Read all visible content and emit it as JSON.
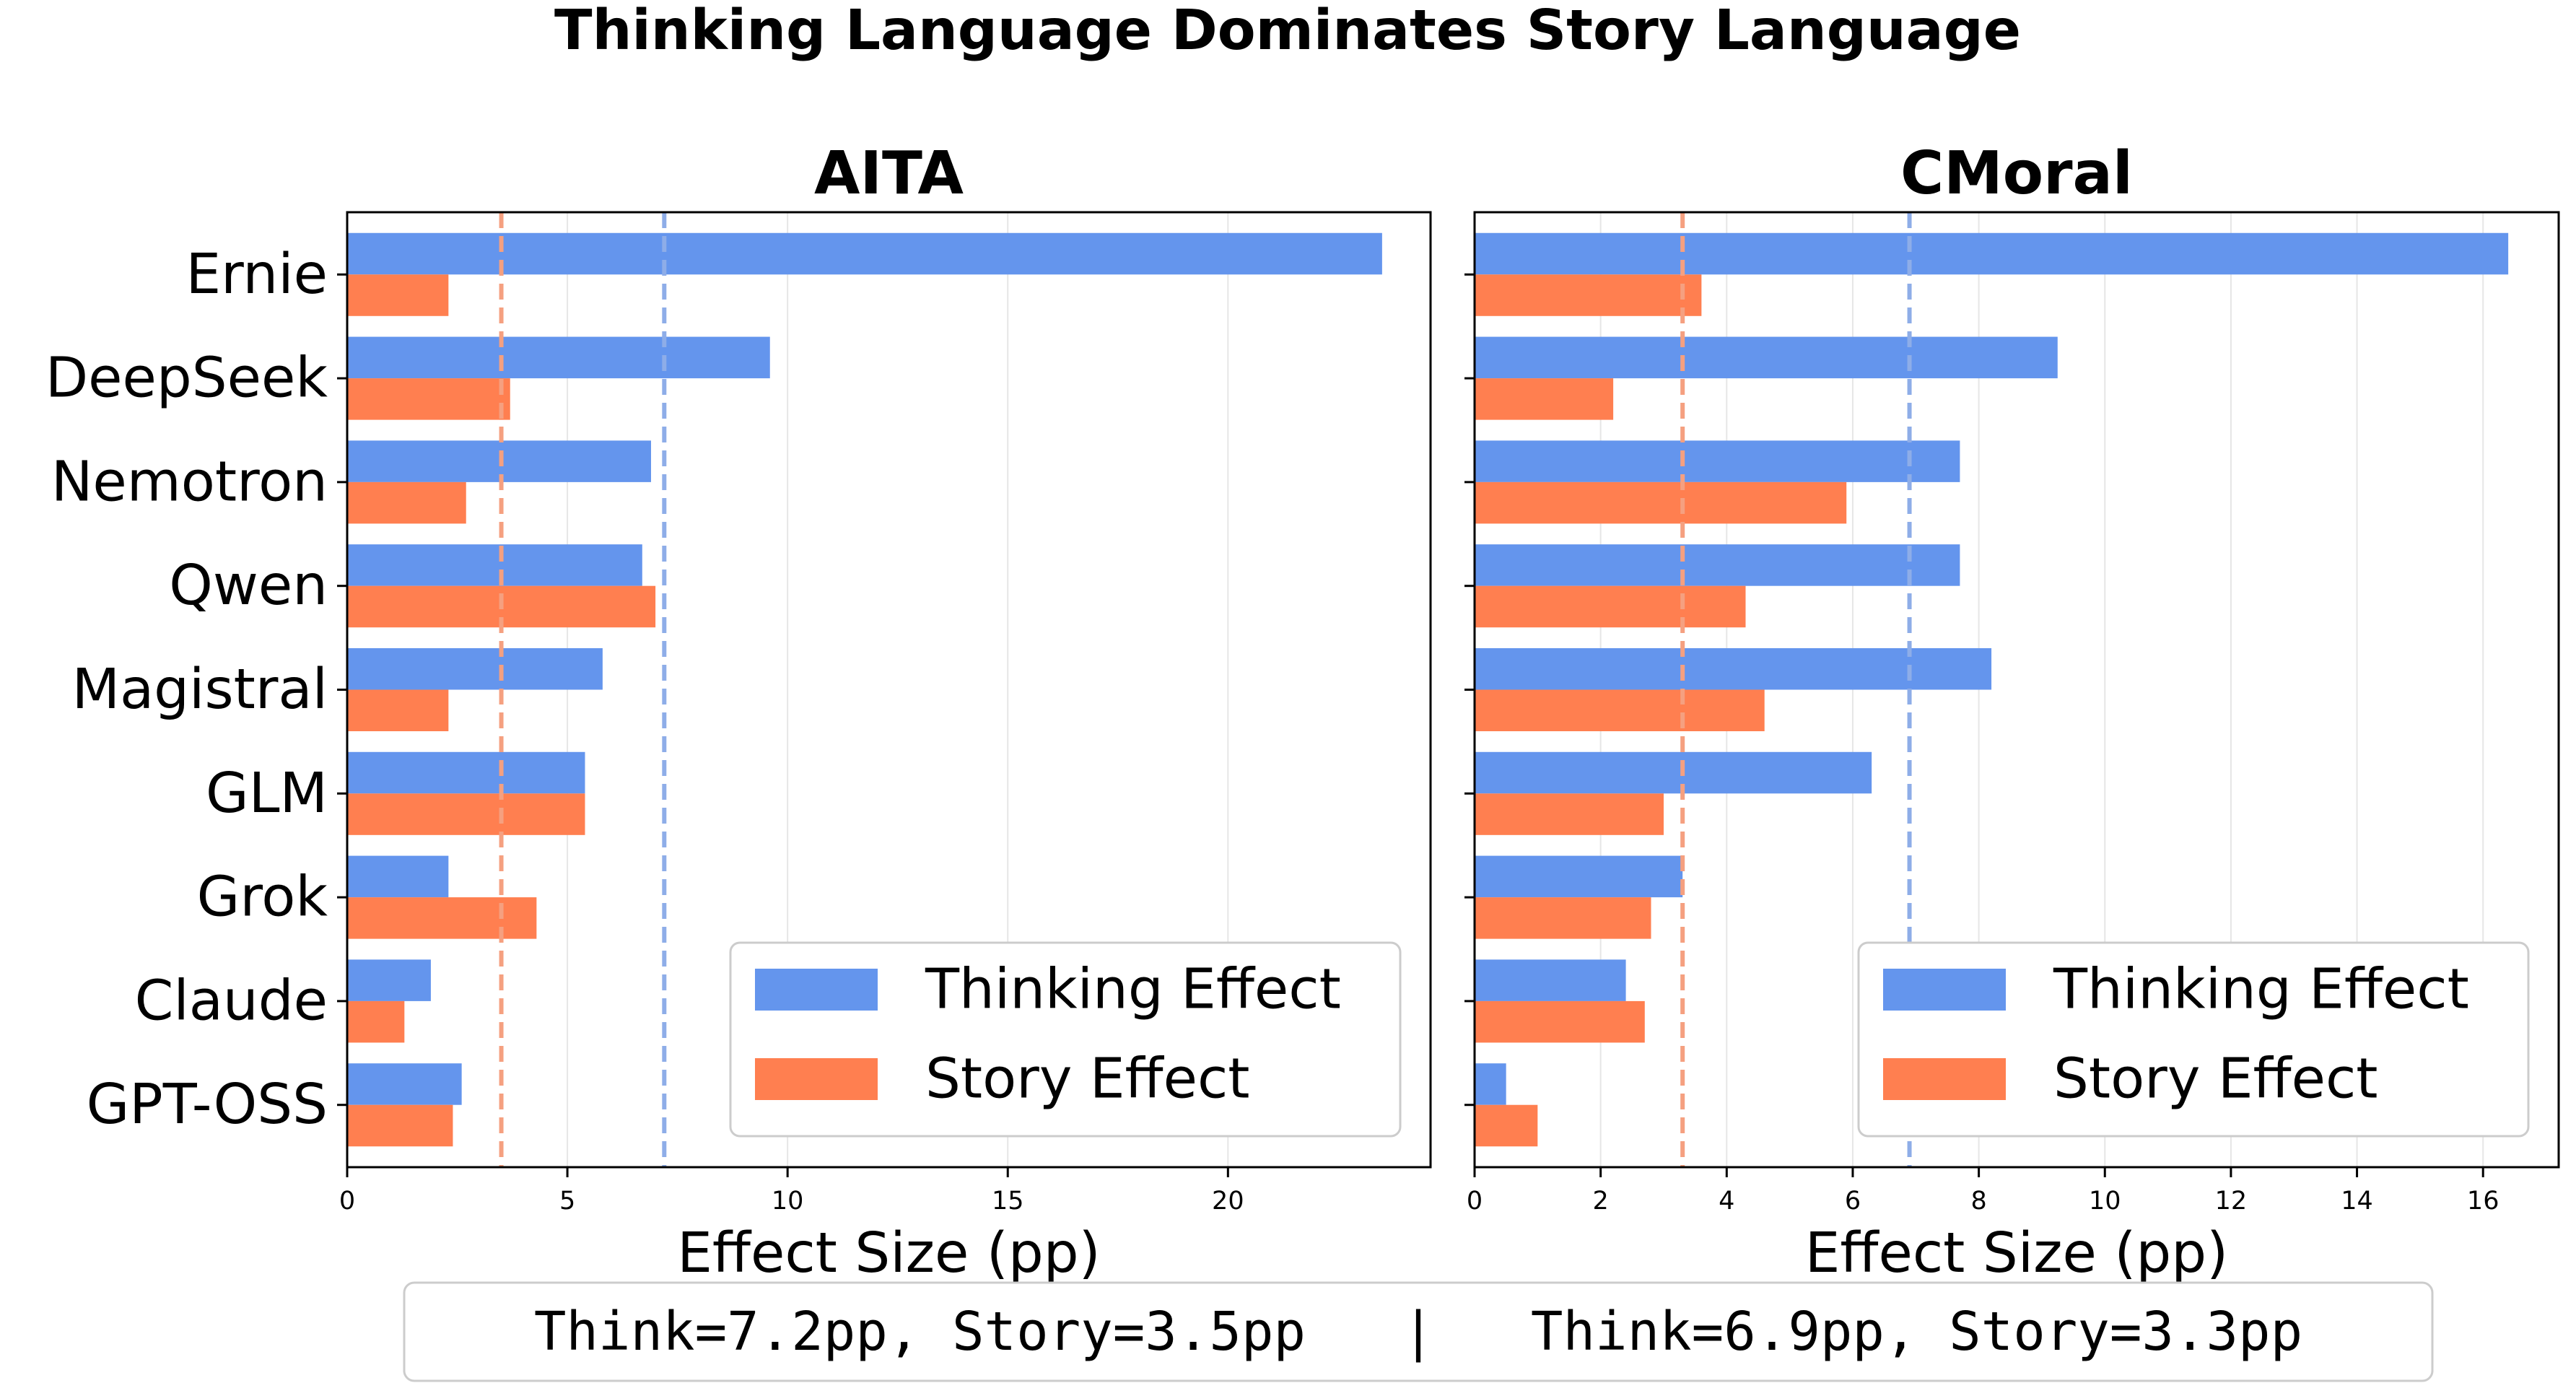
{
  "title": "Thinking Language Dominates Story Language",
  "colors": {
    "thinking": "#6495ED",
    "story": "#FF7F50",
    "think_mean_line": "#8EADE8",
    "story_mean_line": "#F5A080",
    "grid": "#e6e6e6"
  },
  "legend": {
    "thinking_label": "Thinking Effect",
    "story_label": "Story Effect"
  },
  "footer": {
    "text": "Think=7.2pp, Story=3.5pp   |   Think=6.9pp, Story=3.3pp"
  },
  "chart_data": [
    {
      "type": "bar",
      "orientation": "horizontal",
      "title": "AITA",
      "xlabel": "Effect Size (pp)",
      "ylabel": "",
      "xlim": [
        0,
        24.6
      ],
      "xticks": [
        0,
        5,
        10,
        15,
        20
      ],
      "grid": "vertical",
      "legend_position": "lower-right",
      "categories": [
        "Ernie",
        "DeepSeek",
        "Nemotron",
        "Qwen",
        "Magistral",
        "GLM",
        "Grok",
        "Claude",
        "GPT-OSS"
      ],
      "series": [
        {
          "name": "Thinking Effect",
          "values": [
            23.5,
            9.6,
            6.9,
            6.7,
            5.8,
            5.4,
            2.3,
            1.9,
            2.6
          ]
        },
        {
          "name": "Story Effect",
          "values": [
            2.3,
            3.7,
            2.7,
            7.0,
            2.3,
            5.4,
            4.3,
            1.3,
            2.4
          ]
        }
      ],
      "reference_lines": [
        {
          "name": "Thinking mean",
          "value": 7.2
        },
        {
          "name": "Story mean",
          "value": 3.5
        }
      ]
    },
    {
      "type": "bar",
      "orientation": "horizontal",
      "title": "CMoral",
      "xlabel": "Effect Size (pp)",
      "ylabel": "",
      "xlim": [
        0,
        17.2
      ],
      "xticks": [
        0,
        2,
        4,
        6,
        8,
        10,
        12,
        14,
        16
      ],
      "grid": "vertical",
      "legend_position": "lower-right",
      "categories": [
        "Ernie",
        "DeepSeek",
        "Nemotron",
        "Qwen",
        "Magistral",
        "GLM",
        "Grok",
        "Claude",
        "GPT-OSS"
      ],
      "series": [
        {
          "name": "Thinking Effect",
          "values": [
            16.4,
            9.25,
            7.7,
            7.7,
            8.2,
            6.3,
            3.3,
            2.4,
            0.5
          ]
        },
        {
          "name": "Story Effect",
          "values": [
            3.6,
            2.2,
            5.9,
            4.3,
            4.6,
            3.0,
            2.8,
            2.7,
            1.0
          ]
        }
      ],
      "reference_lines": [
        {
          "name": "Thinking mean",
          "value": 6.9
        },
        {
          "name": "Story mean",
          "value": 3.3
        }
      ]
    }
  ]
}
